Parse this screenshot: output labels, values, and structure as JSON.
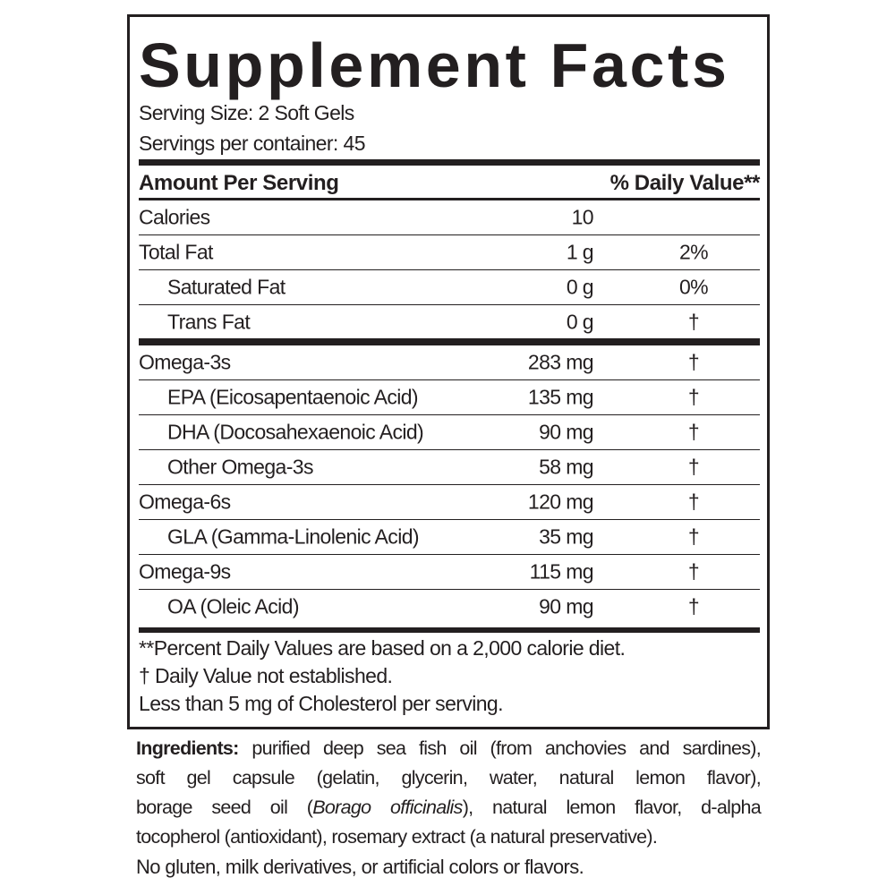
{
  "title": "Supplement Facts",
  "serving_size": "Serving Size: 2 Soft Gels",
  "servings_per_container": "Servings per container: 45",
  "header": {
    "amount": "Amount Per Serving",
    "dv": "% Daily Value**"
  },
  "group1": [
    {
      "name": "Calories",
      "amount": "10",
      "dv": "",
      "indent": false
    },
    {
      "name": "Total Fat",
      "amount": "1 g",
      "dv": "2%",
      "indent": false
    },
    {
      "name": "Saturated Fat",
      "amount": "0 g",
      "dv": "0%",
      "indent": true
    },
    {
      "name": "Trans Fat",
      "amount": "0 g",
      "dv": "†",
      "indent": true
    }
  ],
  "group2": [
    {
      "name": "Omega-3s",
      "amount": "283 mg",
      "dv": "†",
      "indent": false
    },
    {
      "name": "EPA (Eicosapentaenoic Acid)",
      "amount": "135 mg",
      "dv": "†",
      "indent": true
    },
    {
      "name": "DHA (Docosahexaenoic Acid)",
      "amount": "90 mg",
      "dv": "†",
      "indent": true
    },
    {
      "name": "Other Omega-3s",
      "amount": "58 mg",
      "dv": "†",
      "indent": true
    },
    {
      "name": "Omega-6s",
      "amount": "120 mg",
      "dv": "†",
      "indent": false
    },
    {
      "name": "GLA (Gamma-Linolenic Acid)",
      "amount": "35 mg",
      "dv": "†",
      "indent": true
    },
    {
      "name": "Omega-9s",
      "amount": "115 mg",
      "dv": "†",
      "indent": false
    },
    {
      "name": "OA (Oleic Acid)",
      "amount": "90 mg",
      "dv": "†",
      "indent": true
    }
  ],
  "footnotes": [
    "**Percent Daily Values are based on a 2,000 calorie diet.",
    "†  Daily Value not established.",
    "Less than 5 mg of Cholesterol per serving."
  ],
  "ingredients": {
    "label": "Ingredients:",
    "line1": "purified deep sea fish oil (from anchovies and sardines),",
    "line2": "soft gel capsule (gelatin, glycerin, water, natural lemon flavor),",
    "line3_a": "borage seed oil (",
    "line3_italic": "Borago officinalis",
    "line3_b": "), natural lemon flavor, d-alpha",
    "line4": "tocopherol (antioxidant), rosemary extract (a natural preservative)."
  },
  "free_from": "No gluten, milk derivatives, or artificial colors or flavors."
}
